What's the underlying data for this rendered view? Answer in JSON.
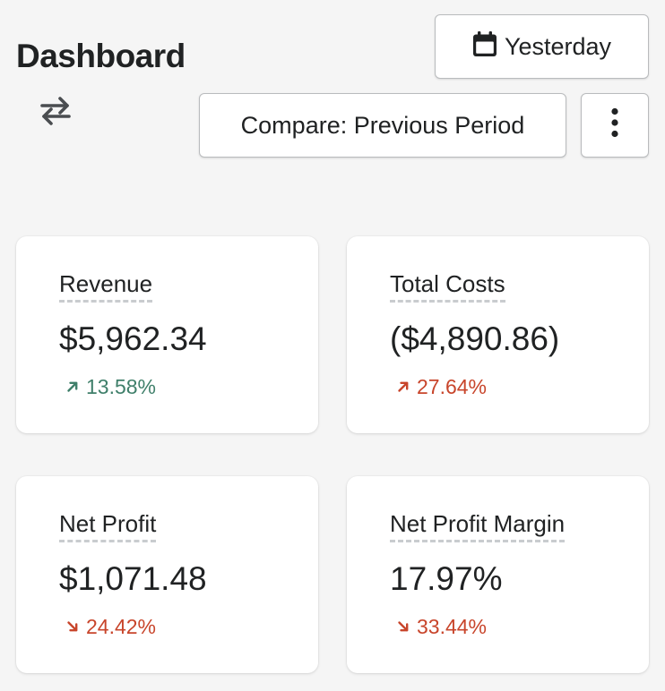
{
  "header": {
    "title": "Dashboard",
    "date_button_label": "Yesterday",
    "compare_button_label": "Compare: Previous Period"
  },
  "icons": {
    "swap": "swap-arrows-icon",
    "calendar": "calendar-icon",
    "more": "vertical-ellipsis-icon"
  },
  "colors": {
    "positive": "#3f7f6a",
    "negative": "#c8452b"
  },
  "metrics": [
    {
      "label": "Revenue",
      "value": "$5,962.34",
      "change": "13.58%",
      "direction": "up",
      "sentiment": "positive"
    },
    {
      "label": "Total Costs",
      "value": "($4,890.86)",
      "change": "27.64%",
      "direction": "up",
      "sentiment": "negative"
    },
    {
      "label": "Net Profit",
      "value": "$1,071.48",
      "change": "24.42%",
      "direction": "down",
      "sentiment": "negative"
    },
    {
      "label": "Net Profit Margin",
      "value": "17.97%",
      "change": "33.44%",
      "direction": "down",
      "sentiment": "negative"
    }
  ]
}
